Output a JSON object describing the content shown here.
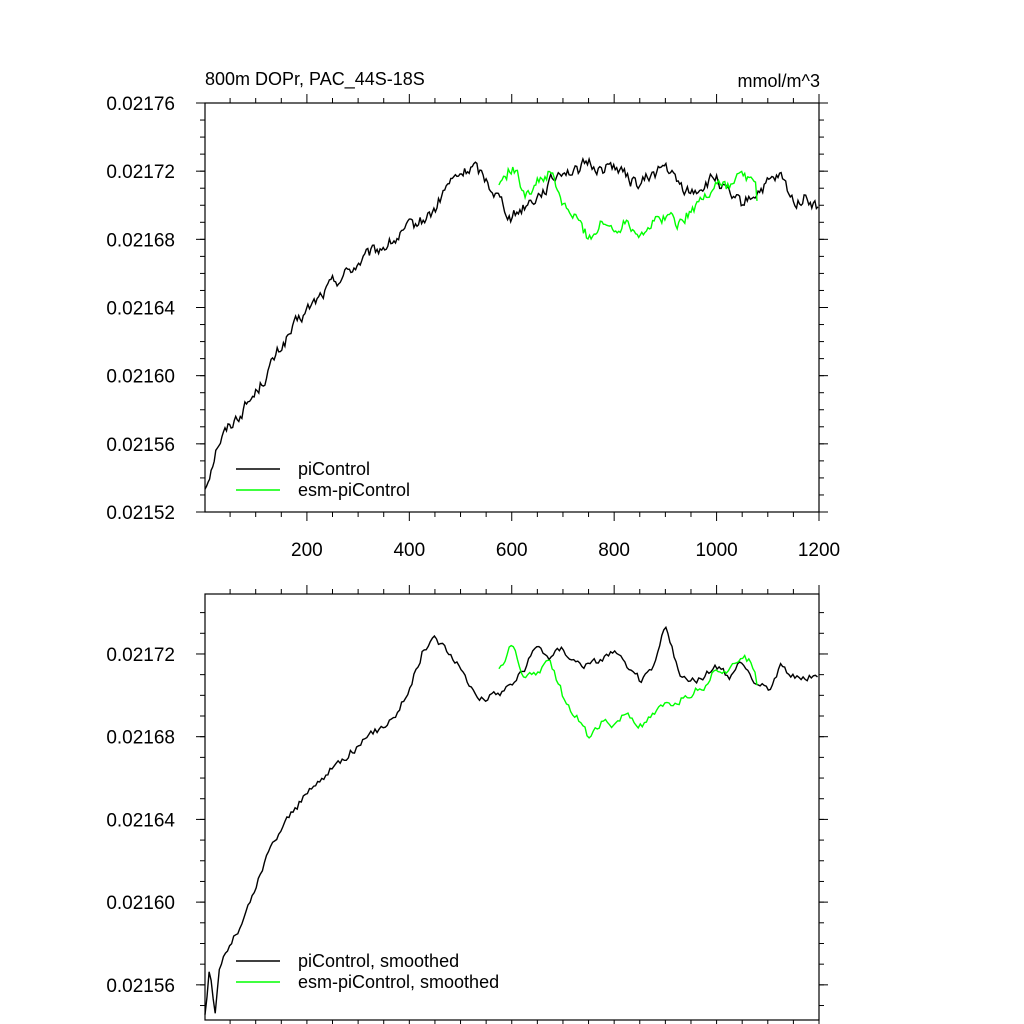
{
  "colors": {
    "picontrol": "#000000",
    "esm_picontrol": "#00ff00",
    "frame": "#000000",
    "background": "#ffffff"
  },
  "chart_data": [
    {
      "type": "line",
      "title": "800m DOPr, PAC_44S-18S",
      "units": "mmol/m^3",
      "xlim": [
        1,
        1200
      ],
      "ylim": [
        0.02152,
        0.02176
      ],
      "x_major_ticks": [
        200,
        400,
        600,
        800,
        1000,
        1200
      ],
      "x_tick_labels": [
        "200",
        "400",
        "600",
        "800",
        "1000",
        "1200"
      ],
      "y_major_ticks": [
        0.02152,
        0.02156,
        0.0216,
        0.02164,
        0.02168,
        0.02172,
        0.02176
      ],
      "y_tick_labels": [
        "0.02152",
        "0.02156",
        "0.02160",
        "0.02164",
        "0.02168",
        "0.02172",
        "0.02176"
      ],
      "legend_position": "bottom-left",
      "legend": [
        "piControl",
        "esm-piControl"
      ],
      "series": [
        {
          "name": "piControl",
          "color": "#000000",
          "x": [
            1,
            25,
            50,
            75,
            100,
            125,
            150,
            175,
            200,
            225,
            250,
            275,
            300,
            325,
            350,
            375,
            400,
            425,
            450,
            475,
            500,
            525,
            550,
            575,
            600,
            625,
            650,
            675,
            700,
            725,
            750,
            775,
            800,
            825,
            850,
            875,
            900,
            925,
            950,
            975,
            1000,
            1025,
            1050,
            1075,
            1100,
            1125,
            1150,
            1175,
            1200
          ],
          "values": [
            0.021534,
            0.02156,
            0.021571,
            0.02158,
            0.02159,
            0.021603,
            0.021617,
            0.021628,
            0.021638,
            0.021646,
            0.021654,
            0.02166,
            0.021666,
            0.021671,
            0.021676,
            0.02168,
            0.021686,
            0.021691,
            0.021697,
            0.021712,
            0.021718,
            0.021723,
            0.021715,
            0.021705,
            0.021693,
            0.0217,
            0.021706,
            0.021713,
            0.021722,
            0.021719,
            0.021725,
            0.021721,
            0.021724,
            0.021716,
            0.021712,
            0.021718,
            0.021723,
            0.021712,
            0.021707,
            0.021712,
            0.021716,
            0.021704,
            0.0217,
            0.021707,
            0.021712,
            0.021716,
            0.021702,
            0.021705,
            0.021697
          ]
        },
        {
          "name": "esm-piControl",
          "color": "#00ff00",
          "x": [
            575,
            600,
            625,
            650,
            675,
            700,
            725,
            750,
            775,
            800,
            825,
            850,
            875,
            900,
            925,
            950,
            975,
            1000,
            1025,
            1050,
            1075,
            1080
          ],
          "values": [
            0.021712,
            0.021723,
            0.021708,
            0.021713,
            0.021719,
            0.0217,
            0.021692,
            0.021681,
            0.021689,
            0.021686,
            0.021692,
            0.021684,
            0.021689,
            0.021694,
            0.02169,
            0.021697,
            0.021704,
            0.021714,
            0.021711,
            0.021718,
            0.021713,
            0.021702
          ]
        }
      ]
    },
    {
      "type": "line",
      "title": "",
      "xlim": [
        1,
        1200
      ],
      "ylim": [
        0.021543,
        0.021749
      ],
      "x_major_ticks": [
        200,
        400,
        600,
        800,
        1000,
        1200
      ],
      "y_major_ticks": [
        0.02156,
        0.0216,
        0.02164,
        0.02168,
        0.02172
      ],
      "y_tick_labels": [
        "0.02156",
        "0.02160",
        "0.02164",
        "0.02168",
        "0.02172"
      ],
      "legend_position": "bottom-left",
      "legend": [
        "piControl, smoothed",
        "esm-piControl, smoothed"
      ],
      "series": [
        {
          "name": "piControl, smoothed",
          "color": "#000000",
          "x": [
            1,
            10,
            20,
            30,
            50,
            75,
            100,
            125,
            150,
            175,
            200,
            225,
            250,
            275,
            300,
            325,
            350,
            375,
            400,
            425,
            450,
            475,
            500,
            525,
            550,
            575,
            600,
            625,
            650,
            675,
            700,
            725,
            750,
            775,
            800,
            825,
            850,
            875,
            900,
            925,
            950,
            975,
            1000,
            1025,
            1050,
            1075,
            1100,
            1125,
            1150,
            1175,
            1200
          ],
          "values": [
            0.021545,
            0.021568,
            0.021544,
            0.02157,
            0.02158,
            0.02159,
            0.021607,
            0.021624,
            0.021636,
            0.021645,
            0.021652,
            0.021659,
            0.021665,
            0.021671,
            0.021676,
            0.02168,
            0.021686,
            0.021692,
            0.021703,
            0.021721,
            0.021728,
            0.021722,
            0.021712,
            0.021703,
            0.021698,
            0.021701,
            0.021706,
            0.021713,
            0.021724,
            0.021719,
            0.021723,
            0.021717,
            0.021714,
            0.021718,
            0.021722,
            0.021712,
            0.021707,
            0.021711,
            0.021734,
            0.021711,
            0.021706,
            0.02171,
            0.021713,
            0.021708,
            0.021716,
            0.021707,
            0.021703,
            0.021714,
            0.02171,
            0.021707,
            0.021711
          ]
        },
        {
          "name": "esm-piControl, smoothed",
          "color": "#00ff00",
          "x": [
            575,
            600,
            625,
            650,
            675,
            700,
            725,
            750,
            775,
            800,
            825,
            850,
            875,
            900,
            925,
            950,
            975,
            1000,
            1025,
            1050,
            1075,
            1080
          ],
          "values": [
            0.021712,
            0.021724,
            0.021707,
            0.021712,
            0.021716,
            0.0217,
            0.02169,
            0.02168,
            0.021687,
            0.021685,
            0.021691,
            0.021685,
            0.021689,
            0.021694,
            0.021697,
            0.021701,
            0.021705,
            0.021714,
            0.021711,
            0.02172,
            0.021713,
            0.021706
          ]
        }
      ]
    }
  ]
}
